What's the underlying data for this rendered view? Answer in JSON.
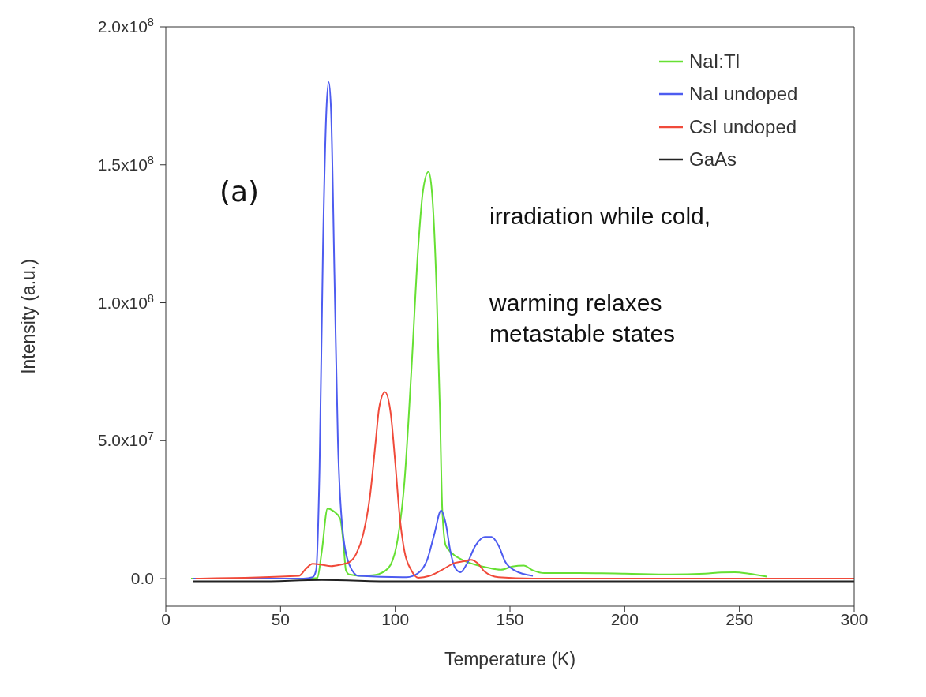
{
  "chart_data": {
    "type": "line",
    "xlabel": "Temperature (K)",
    "ylabel": "Intensity (a.u.)",
    "xlim": [
      0,
      300
    ],
    "xticks": [
      0,
      50,
      100,
      150,
      200,
      250,
      300
    ],
    "ylim": [
      -10000000,
      200000000
    ],
    "yticks": [
      {
        "value": 0,
        "label": "0.0"
      },
      {
        "value": 50000000,
        "label": "5.0x10$^{7}$"
      },
      {
        "value": 100000000,
        "label": "1.0x10$^{8}$"
      },
      {
        "value": 150000000,
        "label": "1.5x10$^{8}$"
      },
      {
        "value": 200000000,
        "label": "2.0x10$^{8}$"
      }
    ],
    "legend": "top right",
    "grid": false,
    "marker": "none",
    "line_style": "solid",
    "annotations": [
      "(a)",
      "irradiation while cold,",
      "warming relaxes\nmetastable states"
    ],
    "series": [
      {
        "name": "NaI:Tl",
        "color": "#66e033",
        "x": [
          11,
          62,
          66,
          68,
          70.5,
          73,
          76,
          77.5,
          78.5,
          80,
          85,
          90,
          95,
          98,
          101,
          104,
          107,
          110,
          112,
          114.5,
          116,
          118,
          119.5,
          120.5,
          122,
          125,
          130,
          135,
          140,
          146,
          151,
          156,
          160,
          165,
          180,
          200,
          220,
          235,
          242,
          248,
          254,
          262
        ],
        "values": [
          0,
          0,
          200000,
          10000000,
          25400000,
          24500000,
          21700000,
          12000000,
          3000000,
          1500000,
          1000000,
          1200000,
          2500000,
          5000000,
          14000000,
          35000000,
          75000000,
          120000000,
          140000000,
          147500000,
          140000000,
          105000000,
          60000000,
          25000000,
          12000000,
          9000000,
          6500000,
          5000000,
          4000000,
          3200000,
          4400000,
          4700000,
          3000000,
          2000000,
          2000000,
          1800000,
          1500000,
          1800000,
          2200000,
          2300000,
          1800000,
          700000
        ]
      },
      {
        "name": "NaI undoped",
        "color": "#4d5cf0",
        "x": [
          12,
          60,
          64,
          65.5,
          67,
          68.5,
          70,
          71,
          72,
          73.5,
          75,
          77,
          80,
          84,
          105,
          110,
          114,
          117,
          120,
          122,
          124,
          126,
          128.4,
          131,
          135,
          139,
          142,
          145,
          148,
          152,
          160
        ],
        "values": [
          0,
          0,
          500000,
          3000000,
          40000000,
          120000000,
          170000000,
          180000000,
          170000000,
          110000000,
          50000000,
          18000000,
          5000000,
          1000000,
          500000,
          2000000,
          7000000,
          16000000,
          24700000,
          20000000,
          10000000,
          4000000,
          2300000,
          5000000,
          12000000,
          15100000,
          15100000,
          12000000,
          6000000,
          3000000,
          1000000
        ]
      },
      {
        "name": "CsI undoped",
        "color": "#f04a3a",
        "x": [
          13,
          58,
          61,
          64,
          68,
          72,
          76,
          80,
          83,
          86,
          89,
          91.5,
          93,
          95.5,
          98,
          100,
          102,
          104,
          107,
          110,
          115,
          120,
          126,
          130,
          133,
          136,
          139,
          145,
          160,
          300
        ],
        "values": [
          0,
          1000000,
          3500000,
          5400000,
          5000000,
          4500000,
          5000000,
          6000000,
          9000000,
          16000000,
          30000000,
          50000000,
          62000000,
          67700000,
          60000000,
          42000000,
          22000000,
          10000000,
          3000000,
          300000,
          1000000,
          3000000,
          5700000,
          6300000,
          6800000,
          5500000,
          2500000,
          500000,
          0,
          0
        ]
      },
      {
        "name": "GaAs",
        "color": "#222222",
        "x": [
          12,
          40,
          68,
          100,
          150,
          200,
          250,
          300
        ],
        "values": [
          -1000000,
          -1000000,
          -500000,
          -1000000,
          -1000000,
          -1000000,
          -1000000,
          -1000000
        ]
      }
    ]
  }
}
